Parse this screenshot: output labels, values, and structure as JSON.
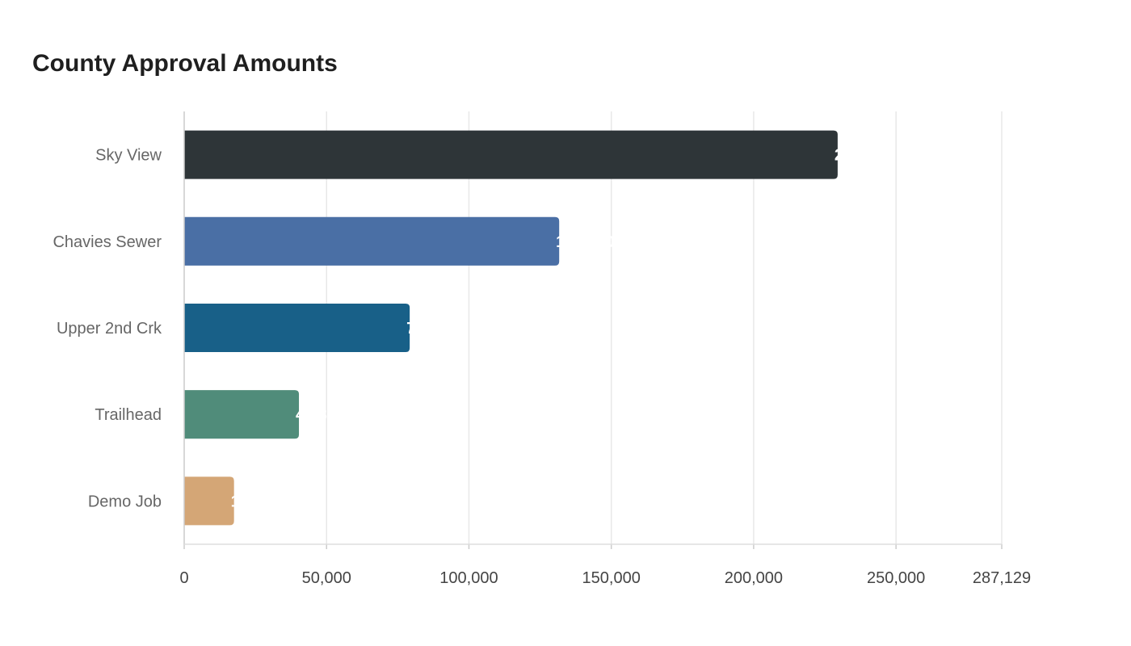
{
  "chart_data": {
    "type": "bar",
    "orientation": "horizontal",
    "title": "County Approval Amounts",
    "categories": [
      "Sky View",
      "Chavies Sewer",
      "Upper 2nd Crk",
      "Trailhead",
      "Demo Job"
    ],
    "values": [
      229500,
      131700,
      79200,
      40300,
      17500
    ],
    "colors": [
      "#2e3538",
      "#4a6fa5",
      "#186088",
      "#508c7a",
      "#d4a676"
    ],
    "xlim": [
      0,
      287129
    ],
    "xticks": [
      0,
      50000,
      100000,
      150000,
      200000,
      250000,
      287129
    ],
    "xtick_labels": [
      "0",
      "50,000",
      "100,000",
      "150,000",
      "200,000",
      "250,000",
      "287,129"
    ],
    "grid": "vertical",
    "value_label_color": "#ffffff",
    "xlabel": "",
    "ylabel": ""
  }
}
